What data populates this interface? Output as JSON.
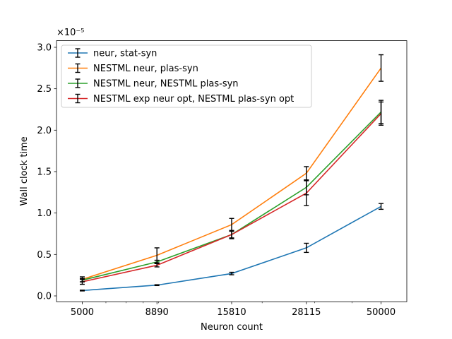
{
  "chart_data": {
    "type": "line",
    "xscale": "log",
    "x": [
      5000,
      8890,
      15810,
      28115,
      50000
    ],
    "xticks": [
      "5000",
      "8890",
      "15810",
      "28115",
      "50000"
    ],
    "xlabel": "Neuron count",
    "ylabel": "Wall clock time",
    "yoffset_label": "×10⁻⁵",
    "y_multiplier": 1e-05,
    "ylim": [
      -0.07,
      3.08
    ],
    "yticks": [
      "0.0",
      "0.5",
      "1.0",
      "1.5",
      "2.0",
      "2.5",
      "3.0"
    ],
    "legend_position": "upper left",
    "series": [
      {
        "name": "neur, stat-syn",
        "color": "#1f77b4",
        "values": [
          0.065,
          0.13,
          0.27,
          0.58,
          1.08
        ],
        "errors": [
          0.005,
          0.005,
          0.015,
          0.055,
          0.035
        ]
      },
      {
        "name": "NESTML neur, plas-syn",
        "color": "#ff7f0e",
        "values": [
          0.2,
          0.49,
          0.86,
          1.48,
          2.75
        ],
        "errors": [
          0.03,
          0.09,
          0.075,
          0.08,
          0.16
        ]
      },
      {
        "name": "NESTML neur, NESTML plas-syn",
        "color": "#2ca02c",
        "values": [
          0.19,
          0.41,
          0.74,
          1.31,
          2.22
        ],
        "errors": [
          0.02,
          0.02,
          0.05,
          0.09,
          0.14
        ]
      },
      {
        "name": "NESTML exp neur opt, NESTML plas-syn opt",
        "color": "#d62728",
        "values": [
          0.17,
          0.37,
          0.74,
          1.24,
          2.2
        ],
        "errors": [
          0.03,
          0.02,
          0.04,
          0.15,
          0.14
        ]
      }
    ]
  }
}
